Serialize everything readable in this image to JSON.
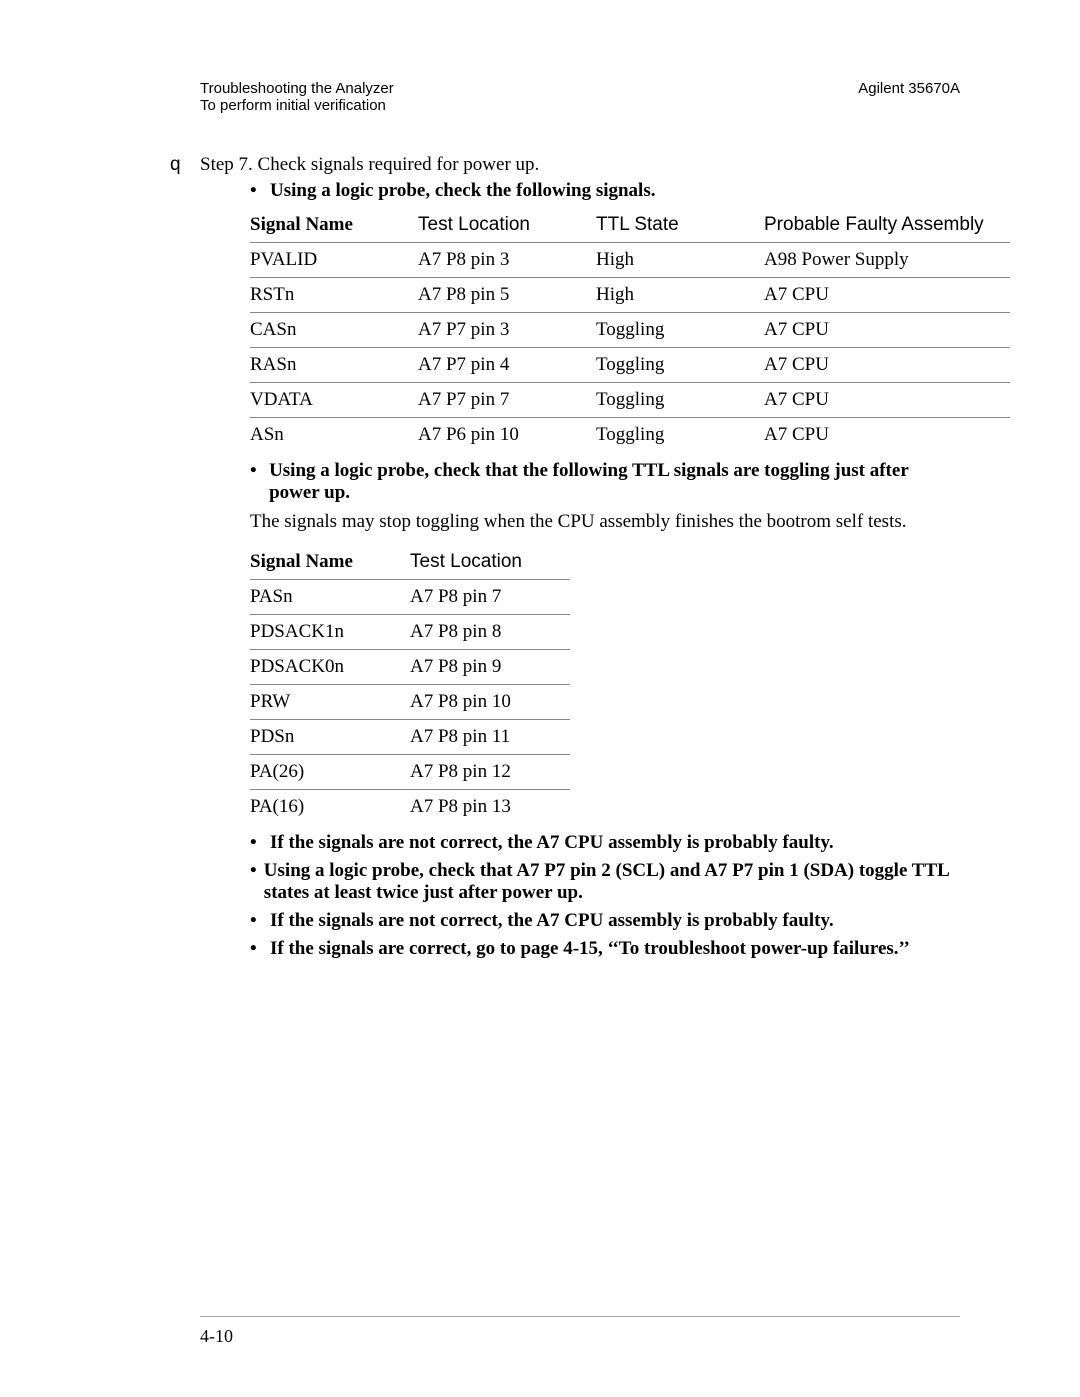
{
  "header": {
    "left_line1": "Troubleshooting the Analyzer",
    "left_line2": "To perform initial verification",
    "right": "Agilent 35670A"
  },
  "step": {
    "marker": "q",
    "text": "Step 7.  Check signals required for power up."
  },
  "bullet1": "Using a logic probe, check the following signals.",
  "table1": {
    "headers": {
      "c1": "Signal Name",
      "c2": "Test Location",
      "c3": "TTL State",
      "c4": "Probable Faulty Assembly"
    },
    "rows": [
      {
        "c1": "PVALID",
        "c2": "A7 P8 pin 3",
        "c3": "High",
        "c4": "A98 Power Supply"
      },
      {
        "c1": "RSTn",
        "c2": "A7 P8 pin 5",
        "c3": "High",
        "c4": "A7 CPU"
      },
      {
        "c1": "CASn",
        "c2": "A7 P7 pin 3",
        "c3": "Toggling",
        "c4": "A7 CPU"
      },
      {
        "c1": "RASn",
        "c2": "A7 P7 pin 4",
        "c3": "Toggling",
        "c4": "A7 CPU"
      },
      {
        "c1": "VDATA",
        "c2": "A7 P7 pin 7",
        "c3": "Toggling",
        "c4": "A7 CPU"
      },
      {
        "c1": "ASn",
        "c2": "A7 P6 pin 10",
        "c3": "Toggling",
        "c4": "A7 CPU"
      }
    ]
  },
  "bullet2": "Using a logic probe, check that the following TTL signals are toggling just after power up.",
  "body2": "The signals may stop toggling when the CPU assembly finishes the bootrom self tests.",
  "table2": {
    "headers": {
      "c1": "Signal Name",
      "c2": "Test Location"
    },
    "rows": [
      {
        "c1": "PASn",
        "c2": "A7 P8 pin 7"
      },
      {
        "c1": "PDSACK1n",
        "c2": "A7 P8 pin 8"
      },
      {
        "c1": "PDSACK0n",
        "c2": "A7 P8 pin 9"
      },
      {
        "c1": "PRW",
        "c2": "A7 P8 pin 10"
      },
      {
        "c1": "PDSn",
        "c2": "A7 P8 pin 11"
      },
      {
        "c1": "PA(26)",
        "c2": "A7 P8 pin 12"
      },
      {
        "c1": "PA(16)",
        "c2": "A7 P8 pin 13"
      }
    ]
  },
  "bullets_after": [
    "If the signals are not correct, the A7 CPU assembly is probably faulty.",
    "Using a logic probe, check that A7 P7 pin 2 (SCL) and A7 P7 pin 1 (SDA) toggle TTL states at least twice just after power up.",
    "If the signals are not correct, the A7 CPU assembly is probably faulty.",
    "If the signals are correct, go to page 4-15, ‘‘To troubleshoot power-up failures.’’"
  ],
  "page_number": "4-10"
}
